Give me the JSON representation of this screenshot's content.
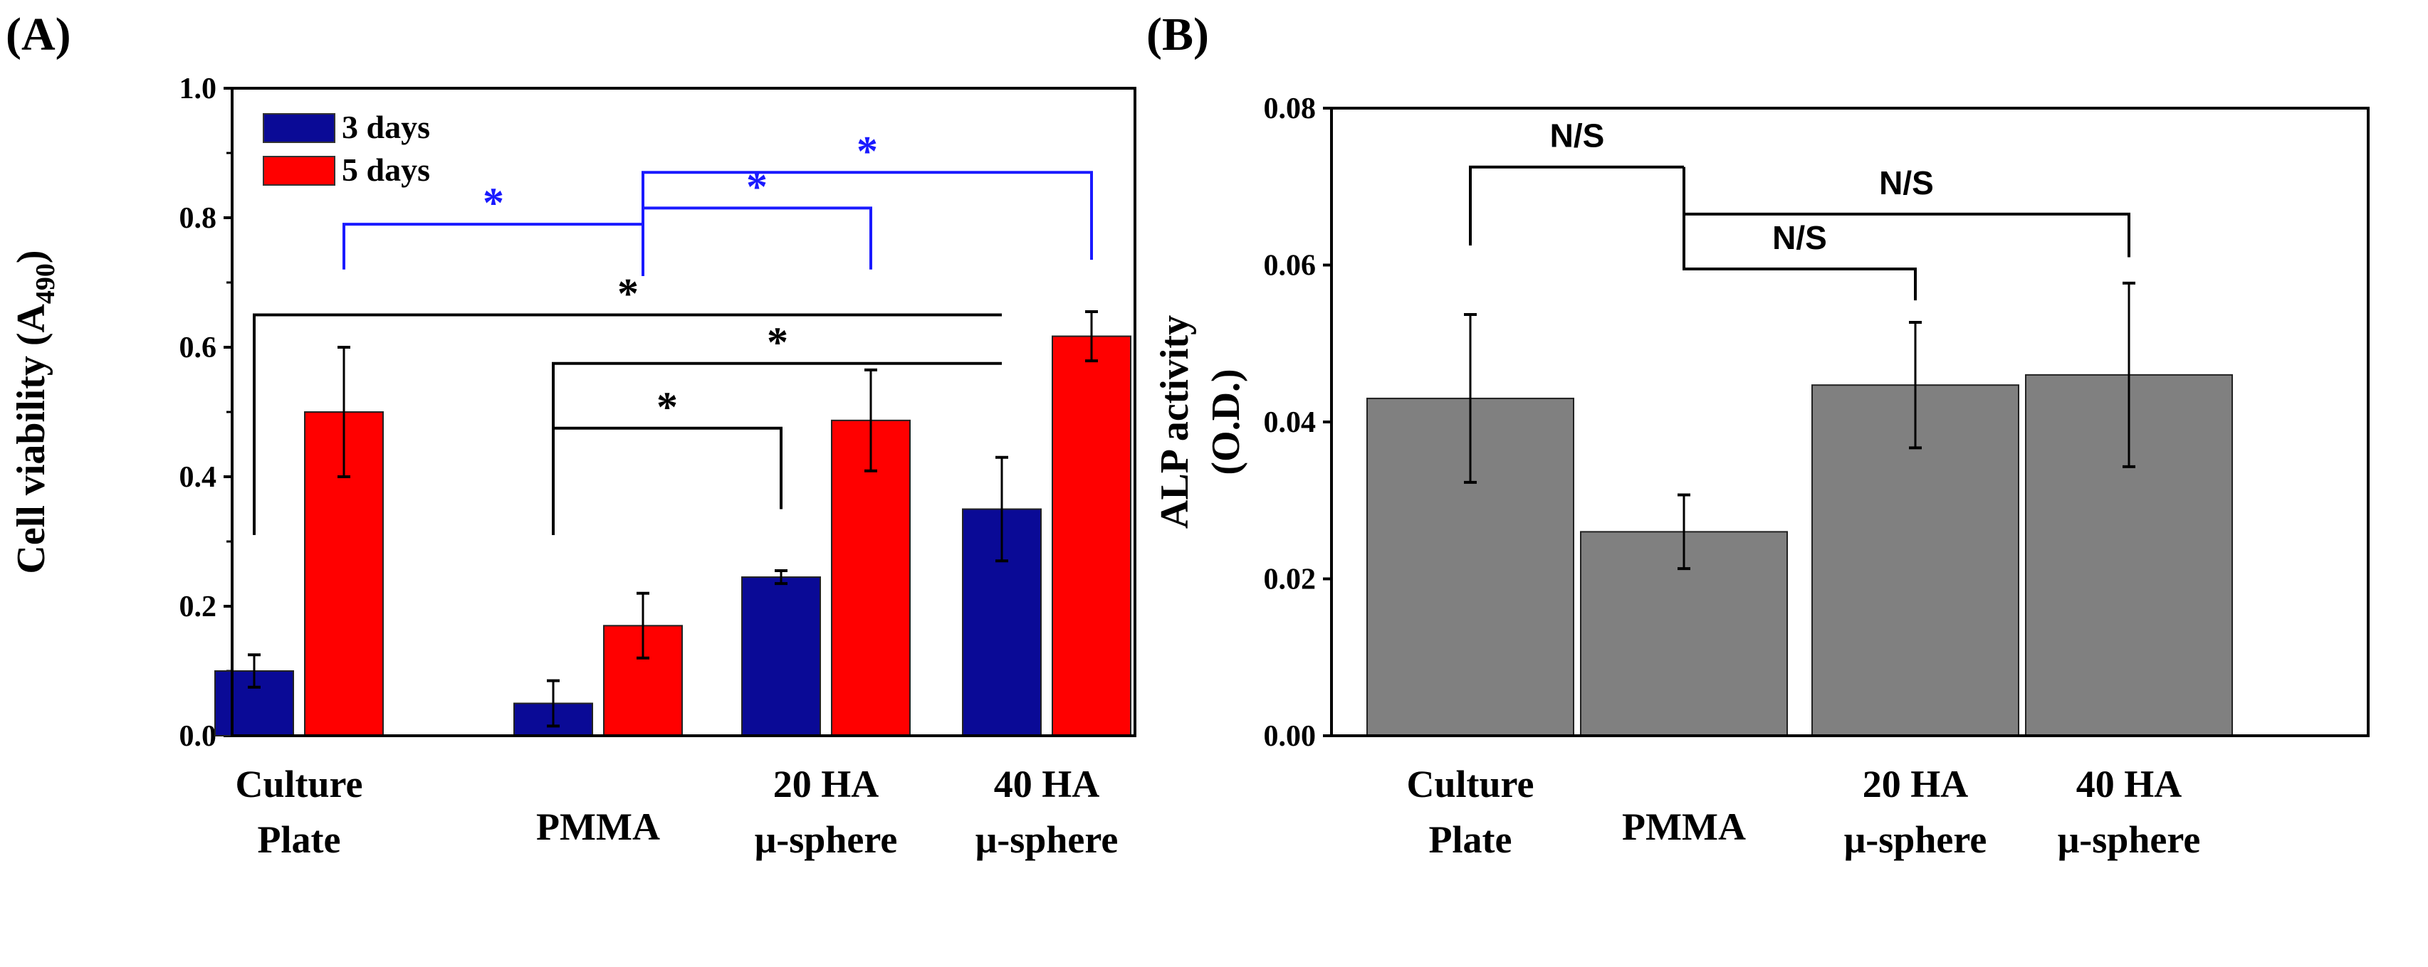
{
  "chart_data": [
    {
      "panel_label": "(A)",
      "type": "bar",
      "ylabel": "Cell viability (A",
      "ylabel_sub": "490",
      "ylabel_close": ")",
      "ylim": [
        0,
        1.0
      ],
      "yticks": [
        "0.0",
        "0.2",
        "0.4",
        "0.6",
        "0.8",
        "1.0"
      ],
      "categories": [
        [
          "Culture",
          "Plate"
        ],
        [
          "PMMA"
        ],
        [
          "20 HA",
          "μ-sphere"
        ],
        [
          "40 HA",
          "μ-sphere"
        ]
      ],
      "legend_position": "top-left",
      "series": [
        {
          "name": "3 days",
          "color": "#0a0a96",
          "values": [
            0.1,
            0.05,
            0.245,
            0.35
          ],
          "errors": [
            0.025,
            0.035,
            0.01,
            0.08
          ]
        },
        {
          "name": "5 days",
          "color": "#ff0000",
          "values": [
            0.5,
            0.17,
            0.487,
            0.617
          ],
          "errors": [
            0.1,
            0.05,
            0.078,
            0.038
          ]
        }
      ],
      "annotations": [
        {
          "text": "*",
          "color": "#000000",
          "from": [
            0,
            0
          ],
          "to": [
            3,
            0
          ],
          "y": 0.65,
          "legs": [
            0.31,
            0.65
          ]
        },
        {
          "text": "*",
          "color": "#000000",
          "from": [
            1,
            0
          ],
          "to": [
            3,
            0
          ],
          "y": 0.575,
          "legs": [
            0.31,
            0.575
          ]
        },
        {
          "text": "*",
          "color": "#000000",
          "from": [
            1,
            0
          ],
          "to": [
            2,
            0
          ],
          "y": 0.475,
          "legs": [
            0.31,
            0.35
          ]
        },
        {
          "text": "*",
          "color": "#1a1aff",
          "from": [
            0,
            1
          ],
          "to": [
            1,
            1
          ],
          "y": 0.79,
          "legs": [
            0.72,
            0.71
          ]
        },
        {
          "text": "*",
          "color": "#1a1aff",
          "from": [
            1,
            1
          ],
          "to": [
            2,
            1
          ],
          "y": 0.815,
          "legs": [
            0.71,
            0.72
          ]
        },
        {
          "text": "*",
          "color": "#1a1aff",
          "from": [
            1,
            1
          ],
          "to": [
            3,
            1
          ],
          "y": 0.87,
          "legs": [
            0.71,
            0.735
          ]
        }
      ]
    },
    {
      "panel_label": "(B)",
      "type": "bar",
      "ylabel": "ALP activity",
      "ylabel2": "(O.D.)",
      "ylim": [
        0,
        0.08
      ],
      "yticks": [
        "0.00",
        "0.02",
        "0.04",
        "0.06",
        "0.08"
      ],
      "categories": [
        [
          "Culture",
          "Plate"
        ],
        [
          "PMMA"
        ],
        [
          "20 HA",
          "μ-sphere"
        ],
        [
          "40 HA",
          "μ-sphere"
        ]
      ],
      "series": [
        {
          "name": "ALP",
          "color": "#808080",
          "values": [
            0.043,
            0.026,
            0.0447,
            0.046
          ],
          "errors": [
            0.0107,
            0.0047,
            0.008,
            0.0117
          ]
        }
      ],
      "annotations": [
        {
          "text": "N/S",
          "color": "#000000",
          "from": [
            0,
            0
          ],
          "to": [
            1,
            0
          ],
          "y": 0.0725,
          "legs": [
            0.0625,
            0.0725
          ]
        },
        {
          "text": "N/S",
          "color": "#000000",
          "from": [
            1,
            0
          ],
          "to": [
            3,
            0
          ],
          "y": 0.0665,
          "legs": [
            0.0725,
            0.061
          ]
        },
        {
          "text": "N/S",
          "color": "#000000",
          "from": [
            1,
            0
          ],
          "to": [
            2,
            0
          ],
          "y": 0.0595,
          "legs": [
            0.0725,
            0.0555
          ]
        }
      ]
    }
  ]
}
